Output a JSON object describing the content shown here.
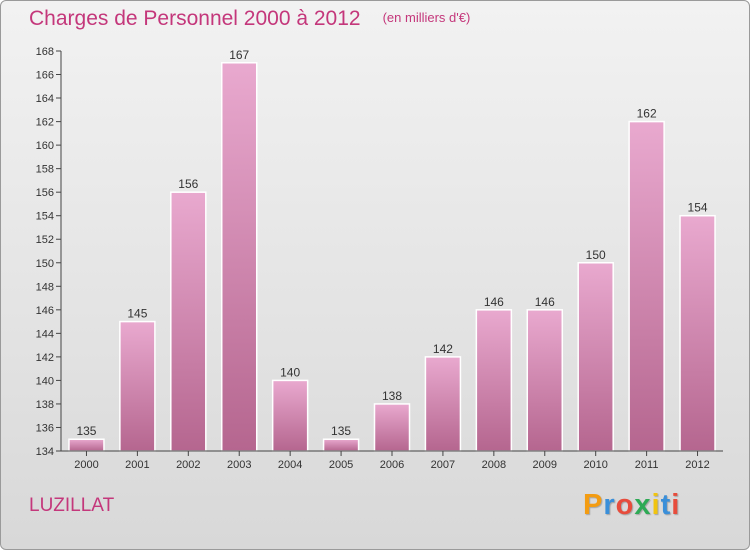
{
  "header": {
    "title": "Charges de Personnel 2000 à 2012",
    "subtitle": "(en milliers d'€)"
  },
  "footer": {
    "commune": "LUZILLAT",
    "brand": {
      "letters": [
        "P",
        "r",
        "o",
        "x",
        "i",
        "t",
        "i"
      ],
      "colors": [
        "#f39c12",
        "#3a8fd9",
        "#e74c3c",
        "#2eaa55",
        "#f1c40f",
        "#3a8fd9",
        "#e74c3c"
      ]
    }
  },
  "colors": {
    "bar_light": "#e9a9cf",
    "bar_dark": "#b5668f",
    "text": "#c4377b",
    "axis": "#444444"
  },
  "chart_data": {
    "type": "bar",
    "title": "Charges de Personnel 2000 à 2012",
    "subtitle": "(en milliers d'€)",
    "xlabel": "",
    "ylabel": "",
    "categories": [
      "2000",
      "2001",
      "2002",
      "2003",
      "2004",
      "2005",
      "2006",
      "2007",
      "2008",
      "2009",
      "2010",
      "2011",
      "2012"
    ],
    "values": [
      135,
      145,
      156,
      167,
      140,
      135,
      138,
      142,
      146,
      146,
      150,
      162,
      154
    ],
    "ylim": [
      134,
      168
    ],
    "yticks": [
      134,
      136,
      138,
      140,
      142,
      144,
      146,
      148,
      150,
      152,
      154,
      156,
      158,
      160,
      162,
      164,
      166,
      168
    ],
    "grid": false,
    "legend": "none"
  }
}
